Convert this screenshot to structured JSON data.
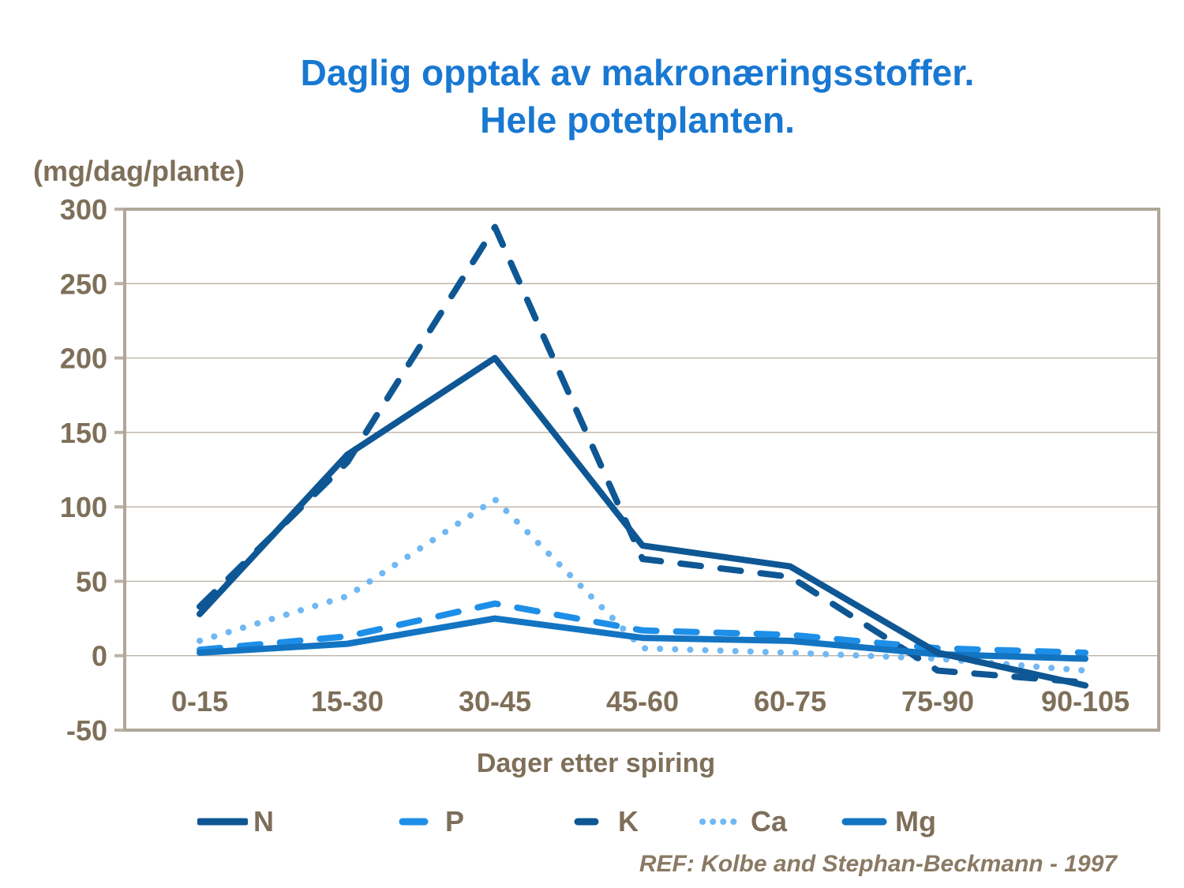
{
  "title": {
    "line1": "Daglig opptak av makronæringsstoffer.",
    "line2": "Hele potetplanten."
  },
  "y_axis": {
    "unit_label": "(mg/dag/plante)",
    "tick_labels": [
      "300",
      "250",
      "200",
      "150",
      "100",
      "50",
      "0",
      "-50"
    ]
  },
  "x_axis": {
    "title": "Dager etter spiring"
  },
  "footer": {
    "reference": "REF: Kolbe and Stephan-Beckmann - 1997"
  },
  "colors": {
    "title_text": "#1878D2",
    "axis_text": "#7E6F59",
    "reference_text": "#8A7A64",
    "grid": "#BBB2A6",
    "border": "#B0A69A",
    "series_dark_blue": "#0E5794",
    "series_medium_blue": "#1374C2",
    "series_bright_blue": "#1E8FE8",
    "series_light_blue": "#70B8F4"
  },
  "chart_data": {
    "type": "line",
    "title": "Daglig opptak av makronæringsstoffer. Hele potetplanten.",
    "xlabel": "Dager etter spiring",
    "ylabel": "(mg/dag/plante)",
    "categories": [
      "0-15",
      "15-30",
      "30-45",
      "45-60",
      "60-75",
      "75-90",
      "90-105"
    ],
    "series": [
      {
        "name": "N",
        "style": "solid",
        "color": "#0E5794",
        "values": [
          28,
          135,
          200,
          74,
          60,
          2,
          -20
        ]
      },
      {
        "name": "P",
        "style": "dashed",
        "color": "#1E8FE8",
        "values": [
          4,
          13,
          35,
          17,
          14,
          5,
          2
        ]
      },
      {
        "name": "K",
        "style": "dashed",
        "color": "#0E5794",
        "values": [
          33,
          130,
          288,
          65,
          53,
          -10,
          -18
        ]
      },
      {
        "name": "Ca",
        "style": "dotted",
        "color": "#70B8F4",
        "values": [
          10,
          40,
          105,
          5,
          2,
          -2,
          -10
        ]
      },
      {
        "name": "Mg",
        "style": "solid",
        "color": "#1374C2",
        "values": [
          2,
          8,
          25,
          12,
          10,
          1,
          -2
        ]
      }
    ],
    "ylim": [
      -50,
      300
    ],
    "y_tick_step": 50,
    "grid": true,
    "legend_position": "bottom"
  }
}
